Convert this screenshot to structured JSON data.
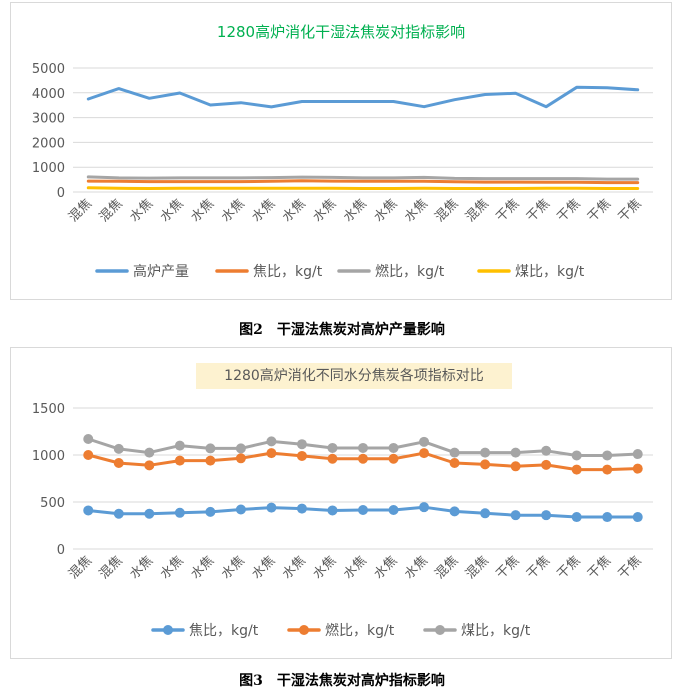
{
  "captions": {
    "fig2": "图2　干湿法焦炭对高炉产量影响",
    "fig3": "图3　干湿法焦炭对高炉指标影响"
  },
  "chart_data": [
    {
      "type": "line",
      "title": "1280高炉消化干湿法焦炭对指标影响",
      "title_color": "#00b050",
      "categories": [
        "混焦",
        "混焦",
        "水焦",
        "水焦",
        "水焦",
        "水焦",
        "水焦",
        "水焦",
        "水焦",
        "水焦",
        "水焦",
        "水焦",
        "混焦",
        "混焦",
        "干焦",
        "干焦",
        "干焦",
        "干焦",
        "干焦"
      ],
      "ylim": [
        0,
        5000
      ],
      "yticks": [
        "0",
        "1000",
        "2000",
        "3000",
        "4000",
        "5000"
      ],
      "ytick_values": [
        0,
        1000,
        2000,
        3000,
        4000,
        5000
      ],
      "grid": true,
      "legend_position": "bottom",
      "series": [
        {
          "name": "高炉产量",
          "color": "#5b9bd5",
          "values": [
            3750,
            4170,
            3780,
            3990,
            3510,
            3600,
            3430,
            3650,
            3650,
            3650,
            3650,
            3440,
            3720,
            3930,
            3980,
            3440,
            4220,
            4200,
            4120
          ]
        },
        {
          "name": "焦比，kg/t",
          "color": "#ed7d31",
          "values": [
            440,
            430,
            420,
            420,
            420,
            420,
            430,
            450,
            440,
            430,
            430,
            430,
            410,
            400,
            400,
            390,
            390,
            380,
            380
          ]
        },
        {
          "name": "燃比，kg/t",
          "color": "#a5a5a5",
          "values": [
            610,
            570,
            560,
            570,
            570,
            570,
            580,
            600,
            590,
            570,
            570,
            590,
            550,
            540,
            540,
            540,
            540,
            520,
            520
          ]
        },
        {
          "name": "煤比，kg/t",
          "color": "#ffc000",
          "values": [
            170,
            150,
            140,
            150,
            150,
            150,
            150,
            150,
            150,
            140,
            140,
            150,
            140,
            140,
            140,
            150,
            150,
            140,
            140
          ]
        }
      ]
    },
    {
      "type": "line",
      "title": "1280高炉消化不同水分焦炭各项指标对比",
      "categories": [
        "混焦",
        "混焦",
        "水焦",
        "水焦",
        "水焦",
        "水焦",
        "水焦",
        "水焦",
        "水焦",
        "水焦",
        "水焦",
        "水焦",
        "混焦",
        "混焦",
        "干焦",
        "干焦",
        "干焦",
        "干焦",
        "干焦"
      ],
      "ylim": [
        0,
        1500
      ],
      "yticks": [
        "0",
        "500",
        "1000",
        "1500"
      ],
      "ytick_values": [
        0,
        500,
        1000,
        1500
      ],
      "grid": true,
      "markers": true,
      "legend_position": "bottom",
      "series": [
        {
          "name": "焦比，kg/t",
          "color": "#5b9bd5",
          "values": [
            410,
            375,
            375,
            385,
            395,
            420,
            440,
            430,
            410,
            415,
            415,
            445,
            400,
            380,
            360,
            360,
            340,
            340,
            340
          ]
        },
        {
          "name": "燃比，kg/t",
          "color": "#ed7d31",
          "values": [
            1000,
            915,
            890,
            940,
            940,
            965,
            1020,
            990,
            960,
            960,
            960,
            1020,
            915,
            900,
            880,
            895,
            845,
            845,
            855
          ]
        },
        {
          "name": "煤比，kg/t",
          "color": "#a5a5a5",
          "values": [
            1170,
            1065,
            1025,
            1100,
            1070,
            1070,
            1145,
            1115,
            1075,
            1075,
            1075,
            1140,
            1025,
            1025,
            1025,
            1045,
            995,
            995,
            1010
          ]
        }
      ]
    }
  ]
}
